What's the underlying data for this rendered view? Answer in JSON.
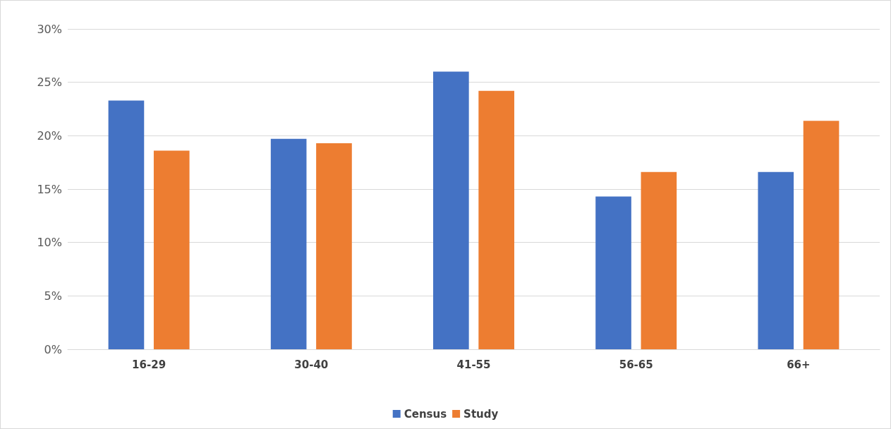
{
  "chart_data": {
    "type": "bar",
    "categories": [
      "16-29",
      "30-40",
      "41-55",
      "56-65",
      "66+"
    ],
    "series": [
      {
        "name": "Census",
        "color": "#4472c4",
        "values": [
          23.3,
          19.7,
          26.0,
          14.3,
          16.6
        ]
      },
      {
        "name": "Study",
        "color": "#ed7d31",
        "values": [
          18.6,
          19.3,
          24.2,
          16.6,
          21.4
        ]
      }
    ],
    "ylim": [
      0,
      30
    ],
    "yticks": [
      {
        "value": 0,
        "label": "0%"
      },
      {
        "value": 5,
        "label": "5%"
      },
      {
        "value": 10,
        "label": "10%"
      },
      {
        "value": 15,
        "label": "15%"
      },
      {
        "value": 20,
        "label": "20%"
      },
      {
        "value": 25,
        "label": "25%"
      },
      {
        "value": 30,
        "label": "30%"
      }
    ],
    "grid": "y",
    "legend": "bottom"
  }
}
